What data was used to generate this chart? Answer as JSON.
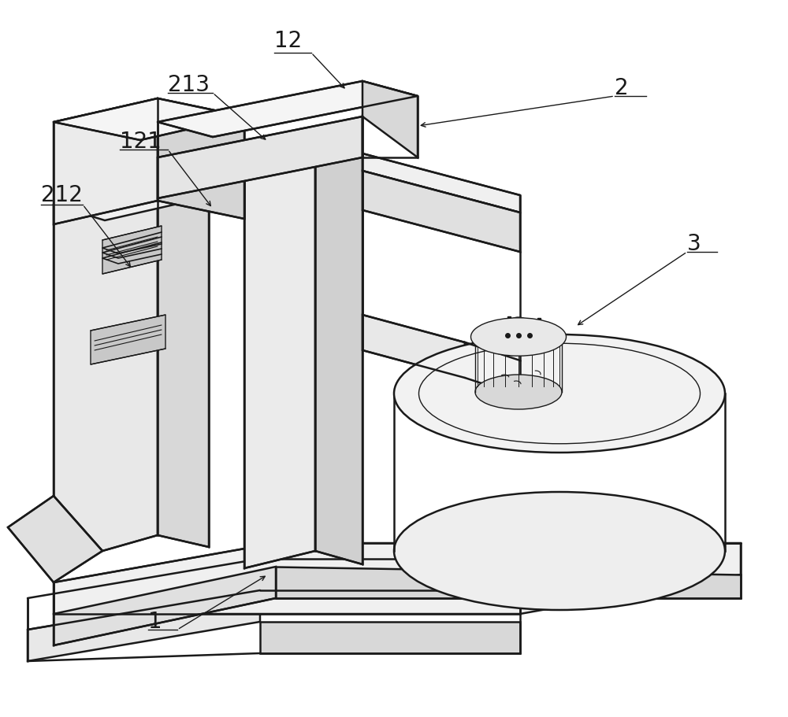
{
  "bg_color": "#ffffff",
  "line_color": "#1a1a1a",
  "lw": 1.8,
  "tlw": 1.0,
  "fs": 20,
  "figsize": [
    10.0,
    9.11
  ]
}
